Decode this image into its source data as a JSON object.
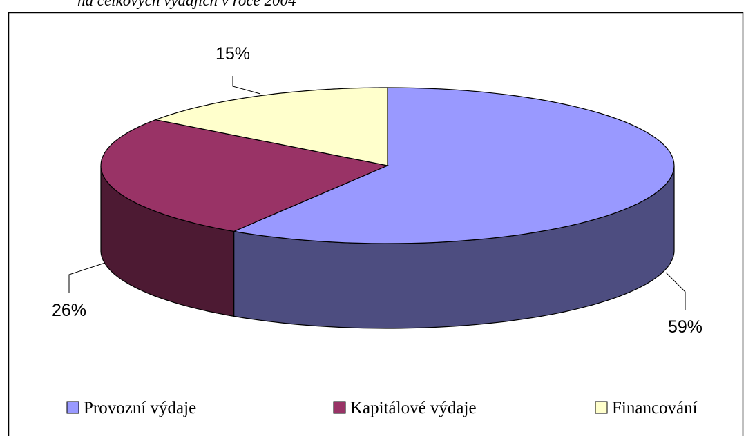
{
  "chart_data": {
    "type": "pie3d",
    "title": "na celkových výdajích v roce 2004",
    "categories": [
      "Provozní výdaje",
      "Kapitálové výdaje",
      "Financování"
    ],
    "values": [
      59,
      26,
      15
    ],
    "value_labels": [
      "59%",
      "26%",
      "15%"
    ],
    "colors": [
      "#9999ff",
      "#993366",
      "#ffffcc"
    ],
    "legend": "bottom"
  }
}
